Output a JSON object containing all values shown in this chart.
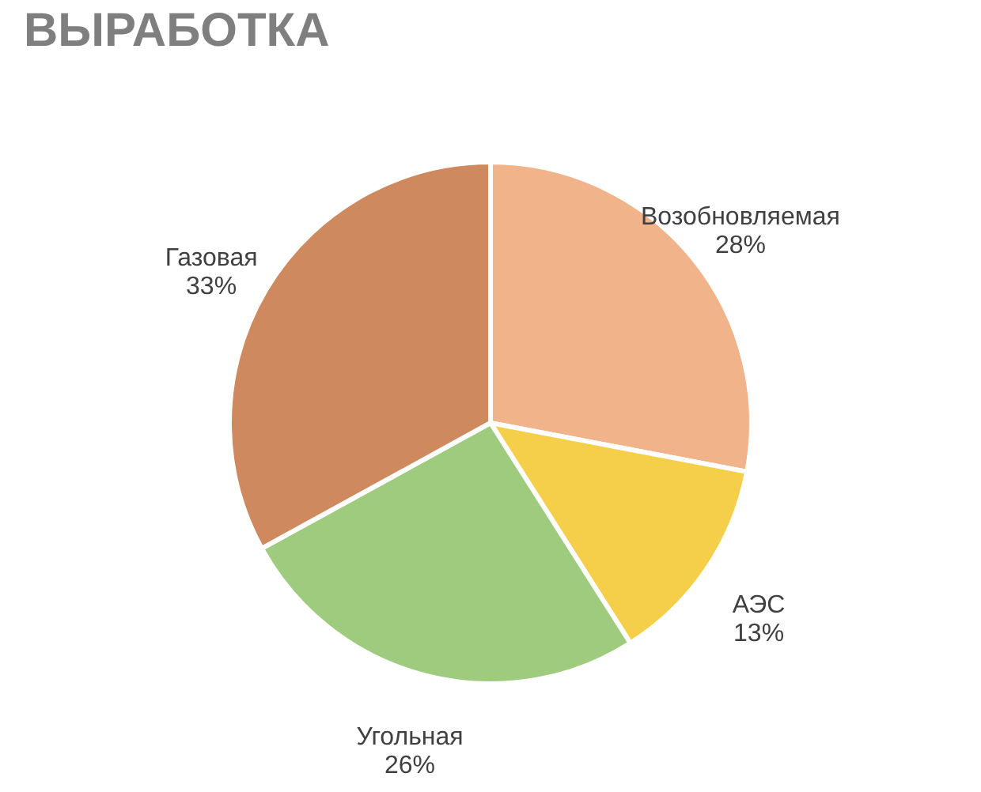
{
  "chart_data": {
    "type": "pie",
    "title": "ВЫРАБОТКА",
    "categories": [
      "Возобновляемая",
      "АЭС",
      "Угольная",
      "Газовая"
    ],
    "values": [
      28,
      13,
      26,
      33
    ],
    "value_labels": [
      "28%",
      "13%",
      "26%",
      "33%"
    ],
    "colors": [
      "#f0b38a",
      "#f5cf4a",
      "#9fcb7e",
      "#cf895e"
    ],
    "legend": false
  }
}
